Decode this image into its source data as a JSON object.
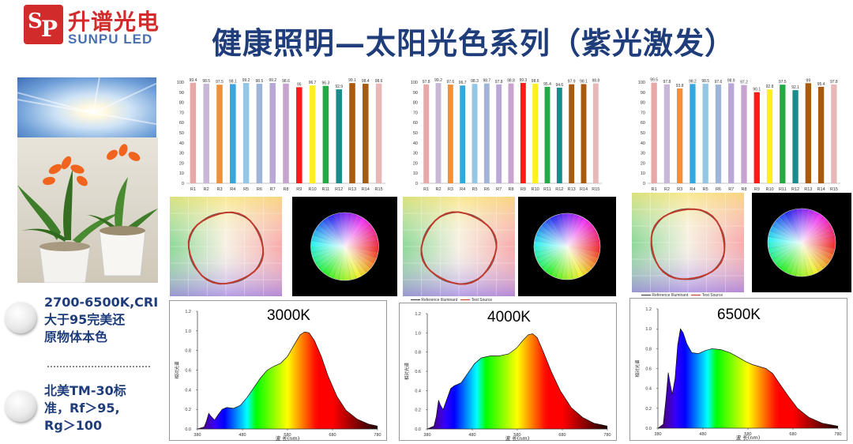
{
  "header": {
    "logo_cn": "升谱光电",
    "logo_en": "SUNPU LED",
    "title": "健康照明—太阳光色系列（紫光激发）"
  },
  "bullets": [
    {
      "lines": [
        "2700-6500K,CRI",
        "大于95完美还",
        "原物体本色"
      ]
    },
    {
      "lines": [
        "北美TM-30标",
        "准，Rf＞95,",
        "Rg＞100"
      ]
    }
  ],
  "colors": {
    "title": "#1f3d7a",
    "logo_red": "#d22b2b",
    "ring": "#c0392b",
    "R": [
      "#e8a8a8",
      "#c8b8d8",
      "#f0903a",
      "#36a6e0",
      "#94c7e6",
      "#9fb4d8",
      "#b9a8d6",
      "#c7a4cf",
      "#ff1a1a",
      "#ffee22",
      "#22aa44",
      "#1a8c8c",
      "#a85a10",
      "#e8b8b8"
    ]
  },
  "cri_charts": [
    {
      "ylim": [
        0,
        100
      ],
      "ticks": [
        0,
        10,
        20,
        30,
        40,
        50,
        60,
        70,
        80,
        90,
        100
      ],
      "categories": [
        "R1",
        "R2",
        "R3",
        "R4",
        "R5",
        "R6",
        "R7",
        "R8",
        "R9",
        "R10",
        "R11",
        "R12",
        "R13",
        "R14",
        "R15"
      ],
      "values": [
        99.4,
        98.5,
        97.5,
        98.1,
        99.2,
        98.5,
        99.2,
        98.6,
        95,
        96.7,
        96.3,
        92.9,
        99.1,
        98.4,
        98.6
      ],
      "labels": [
        "99.4",
        "98.5",
        "97.5",
        "98.1",
        "99.2",
        "98.5",
        "99.2",
        "98.6",
        "95",
        "96.7",
        "96.3",
        "92.9",
        "99.1",
        "98.4",
        "98.6"
      ]
    },
    {
      "ylim": [
        0,
        100
      ],
      "ticks": [
        0,
        10,
        20,
        30,
        40,
        50,
        60,
        70,
        80,
        90,
        100
      ],
      "categories": [
        "R1",
        "R2",
        "R3",
        "R4",
        "R5",
        "R6",
        "R7",
        "R8",
        "R9",
        "R10",
        "R11",
        "R12",
        "R13",
        "R14",
        "R15"
      ],
      "values": [
        97.8,
        99.2,
        97.6,
        96.7,
        98.3,
        98.7,
        97.8,
        98.8,
        99.3,
        98.6,
        95.4,
        94.6,
        97.9,
        98.1,
        98.8
      ],
      "labels": [
        "97.8",
        "99.2",
        "97.6",
        "96.7",
        "98.3",
        "98.7",
        "97.8",
        "98.8",
        "99.3",
        "98.6",
        "95.4",
        "94.6",
        "97.9",
        "98.1",
        "98.8"
      ]
    },
    {
      "ylim": [
        0,
        100
      ],
      "ticks": [
        0,
        10,
        20,
        30,
        40,
        50,
        60,
        70,
        80,
        90,
        100
      ],
      "categories": [
        "R1",
        "R2",
        "R3",
        "R4",
        "R5",
        "R6",
        "R7",
        "R8",
        "R9",
        "R10",
        "R11",
        "R12",
        "R13",
        "R14",
        "R15"
      ],
      "values": [
        99.5,
        97.8,
        93.8,
        98.2,
        98.5,
        97.6,
        98.9,
        97.2,
        90.1,
        92.8,
        97.5,
        92.1,
        99,
        95.4,
        97.8
      ],
      "labels": [
        "99.5",
        "97.8",
        "93.8",
        "98.2",
        "98.5",
        "97.6",
        "98.9",
        "97.2",
        "90.1",
        "92.8",
        "97.5",
        "92.1",
        "99",
        "95.4",
        "97.8"
      ]
    }
  ],
  "tm30_legend": {
    "reference": "Reference Illuminant",
    "test": "Test Source"
  },
  "spectra": [
    {
      "label": "3000K",
      "ylabel": "相对光谱",
      "xlabel": "波 长(nm)",
      "yticks": [
        "0.0",
        "0.2",
        "0.4",
        "0.6",
        "0.8",
        "1.0",
        "1.2"
      ],
      "xticks": [
        "380",
        "480",
        "580",
        "680",
        "780"
      ],
      "points": [
        [
          380,
          0
        ],
        [
          395,
          0.02
        ],
        [
          400,
          0.08
        ],
        [
          405,
          0.16
        ],
        [
          410,
          0.13
        ],
        [
          418,
          0.09
        ],
        [
          425,
          0.14
        ],
        [
          435,
          0.2
        ],
        [
          445,
          0.22
        ],
        [
          460,
          0.21
        ],
        [
          475,
          0.24
        ],
        [
          490,
          0.32
        ],
        [
          505,
          0.42
        ],
        [
          520,
          0.52
        ],
        [
          535,
          0.6
        ],
        [
          550,
          0.64
        ],
        [
          565,
          0.67
        ],
        [
          580,
          0.74
        ],
        [
          595,
          0.86
        ],
        [
          608,
          0.96
        ],
        [
          618,
          0.99
        ],
        [
          628,
          0.98
        ],
        [
          640,
          0.9
        ],
        [
          655,
          0.74
        ],
        [
          670,
          0.54
        ],
        [
          690,
          0.33
        ],
        [
          710,
          0.19
        ],
        [
          735,
          0.1
        ],
        [
          760,
          0.05
        ],
        [
          780,
          0.03
        ]
      ]
    },
    {
      "label": "4000K",
      "ylabel": "相对光谱",
      "xlabel": "波 长(nm)",
      "yticks": [
        "0.0",
        "0.2",
        "0.4",
        "0.6",
        "0.8",
        "1.0",
        "1.2"
      ],
      "xticks": [
        "380",
        "480",
        "580",
        "680",
        "780"
      ],
      "points": [
        [
          380,
          0
        ],
        [
          395,
          0.03
        ],
        [
          400,
          0.13
        ],
        [
          405,
          0.3
        ],
        [
          409,
          0.25
        ],
        [
          415,
          0.2
        ],
        [
          422,
          0.29
        ],
        [
          432,
          0.42
        ],
        [
          440,
          0.45
        ],
        [
          455,
          0.48
        ],
        [
          470,
          0.58
        ],
        [
          485,
          0.68
        ],
        [
          500,
          0.74
        ],
        [
          520,
          0.76
        ],
        [
          540,
          0.76
        ],
        [
          560,
          0.78
        ],
        [
          578,
          0.84
        ],
        [
          592,
          0.92
        ],
        [
          604,
          0.98
        ],
        [
          614,
          0.99
        ],
        [
          624,
          0.95
        ],
        [
          638,
          0.8
        ],
        [
          655,
          0.6
        ],
        [
          675,
          0.4
        ],
        [
          700,
          0.22
        ],
        [
          725,
          0.12
        ],
        [
          750,
          0.06
        ],
        [
          780,
          0.03
        ]
      ]
    },
    {
      "label": "6500K",
      "ylabel": "相对光谱",
      "xlabel": "波 长(nm)",
      "yticks": [
        "0.0",
        "0.2",
        "0.4",
        "0.6",
        "0.8",
        "1.0",
        "1.2"
      ],
      "xticks": [
        "380",
        "480",
        "580",
        "680",
        "780"
      ],
      "points": [
        [
          380,
          0
        ],
        [
          392,
          0.04
        ],
        [
          398,
          0.3
        ],
        [
          403,
          0.56
        ],
        [
          407,
          0.45
        ],
        [
          412,
          0.34
        ],
        [
          418,
          0.5
        ],
        [
          424,
          0.84
        ],
        [
          430,
          1.0
        ],
        [
          436,
          0.96
        ],
        [
          444,
          0.85
        ],
        [
          455,
          0.76
        ],
        [
          470,
          0.75
        ],
        [
          485,
          0.78
        ],
        [
          500,
          0.8
        ],
        [
          520,
          0.79
        ],
        [
          540,
          0.76
        ],
        [
          560,
          0.71
        ],
        [
          575,
          0.67
        ],
        [
          590,
          0.64
        ],
        [
          605,
          0.62
        ],
        [
          620,
          0.6
        ],
        [
          635,
          0.55
        ],
        [
          650,
          0.45
        ],
        [
          670,
          0.32
        ],
        [
          690,
          0.2
        ],
        [
          715,
          0.11
        ],
        [
          745,
          0.05
        ],
        [
          780,
          0.02
        ]
      ]
    }
  ]
}
